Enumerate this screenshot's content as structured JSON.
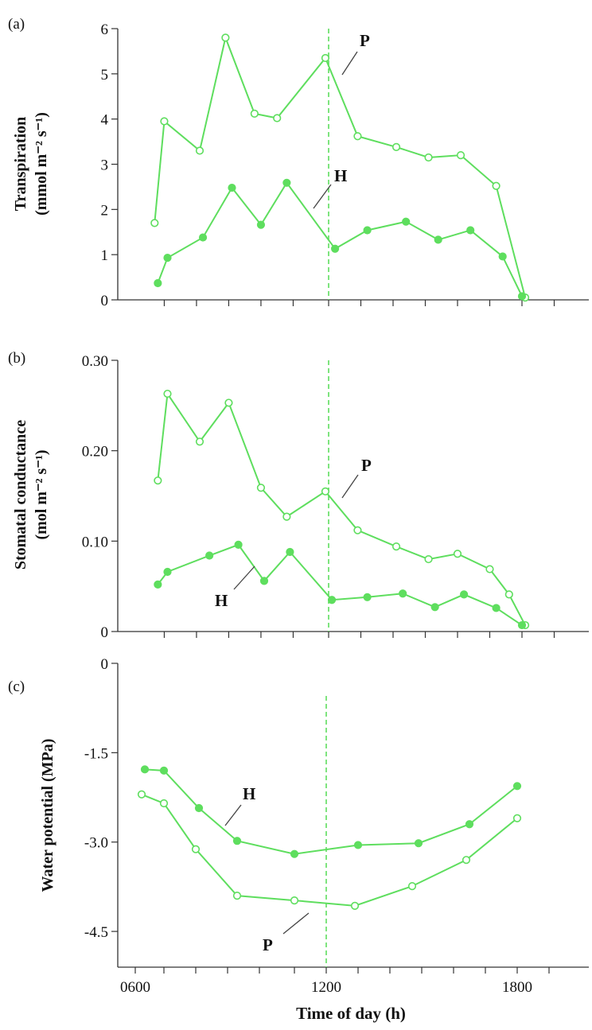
{
  "chart_data": [
    {
      "type": "line",
      "panel_label": "(a)",
      "ylabel_main": "Transpiration",
      "ylabel_unit": "(mmol m⁻² s⁻¹)",
      "xlabel": "",
      "ylim": [
        0,
        6
      ],
      "yticks": [
        0,
        1,
        2,
        3,
        4,
        5,
        6
      ],
      "ytick_labels": [
        "0",
        "1",
        "2",
        "3",
        "4",
        "5",
        "6"
      ],
      "xlim": [
        5.7,
        19.3
      ],
      "reference_line_x": 12,
      "series": [
        {
          "name": "P",
          "marker": "open-circle",
          "color": "#5ede5e",
          "x": [
            6.6,
            6.9,
            8.0,
            8.8,
            9.7,
            10.4,
            11.9,
            12.9,
            14.1,
            15.1,
            16.1,
            17.2,
            18.1
          ],
          "y": [
            1.7,
            3.95,
            3.3,
            5.8,
            4.12,
            4.02,
            5.35,
            3.62,
            3.38,
            3.15,
            3.2,
            2.52,
            0.05
          ]
        },
        {
          "name": "H",
          "marker": "filled-circle",
          "color": "#5ede5e",
          "x": [
            6.7,
            7.0,
            8.1,
            9.0,
            9.9,
            10.7,
            12.2,
            13.2,
            14.4,
            15.4,
            16.4,
            17.4,
            18.0
          ],
          "y": [
            0.37,
            0.93,
            1.38,
            2.48,
            1.66,
            2.59,
            1.13,
            1.54,
            1.73,
            1.33,
            1.54,
            0.96,
            0.08
          ]
        }
      ]
    },
    {
      "type": "line",
      "panel_label": "(b)",
      "ylabel_main": "Stomatal conductance",
      "ylabel_unit": "(mol m⁻² s⁻¹)",
      "xlabel": "",
      "ylim": [
        0,
        0.3
      ],
      "yticks": [
        0,
        0.1,
        0.2,
        0.3
      ],
      "ytick_labels": [
        "0",
        "0.10",
        "0.20",
        "0.30"
      ],
      "xlim": [
        5.7,
        19.3
      ],
      "reference_line_x": 12,
      "series": [
        {
          "name": "P",
          "marker": "open-circle",
          "color": "#5ede5e",
          "x": [
            6.7,
            7.0,
            8.0,
            8.9,
            9.9,
            10.7,
            11.9,
            12.9,
            14.1,
            15.1,
            16.0,
            17.0,
            17.6,
            18.1
          ],
          "y": [
            0.167,
            0.263,
            0.21,
            0.253,
            0.159,
            0.127,
            0.155,
            0.112,
            0.094,
            0.08,
            0.086,
            0.069,
            0.041,
            0.007
          ]
        },
        {
          "name": "H",
          "marker": "filled-circle",
          "color": "#5ede5e",
          "x": [
            6.7,
            7.0,
            8.3,
            9.2,
            10.0,
            10.8,
            12.1,
            13.2,
            14.3,
            15.3,
            16.2,
            17.2,
            18.0
          ],
          "y": [
            0.052,
            0.066,
            0.084,
            0.096,
            0.056,
            0.088,
            0.035,
            0.038,
            0.042,
            0.027,
            0.041,
            0.026,
            0.007
          ]
        }
      ]
    },
    {
      "type": "line",
      "panel_label": "(c)",
      "ylabel_main": "Water potential (MPa)",
      "xlabel": "Time of day (h)",
      "ylim": [
        -5.1,
        0
      ],
      "yticks": [
        0,
        -1.5,
        -3.0,
        -4.5
      ],
      "ytick_labels": [
        "0",
        "-1.5",
        "-3.0",
        "-4.5"
      ],
      "xlim": [
        5.7,
        19.3
      ],
      "xticks": [
        6,
        12,
        18
      ],
      "xtick_labels": [
        "0600",
        "1200",
        "1800"
      ],
      "reference_line_x": 12,
      "series": [
        {
          "name": "H",
          "marker": "filled-circle",
          "color": "#5ede5e",
          "x": [
            6.3,
            6.9,
            8.0,
            9.2,
            11.0,
            13.0,
            14.9,
            16.5,
            18.0
          ],
          "y": [
            -1.78,
            -1.8,
            -2.43,
            -2.98,
            -3.2,
            -3.05,
            -3.02,
            -2.7,
            -2.06
          ]
        },
        {
          "name": "P",
          "marker": "open-circle",
          "color": "#5ede5e",
          "x": [
            6.2,
            6.9,
            7.9,
            9.2,
            11.0,
            12.9,
            14.7,
            16.4,
            18.0
          ],
          "y": [
            -2.2,
            -2.35,
            -3.12,
            -3.9,
            -3.98,
            -4.07,
            -3.74,
            -3.3,
            -2.6
          ]
        }
      ]
    }
  ]
}
